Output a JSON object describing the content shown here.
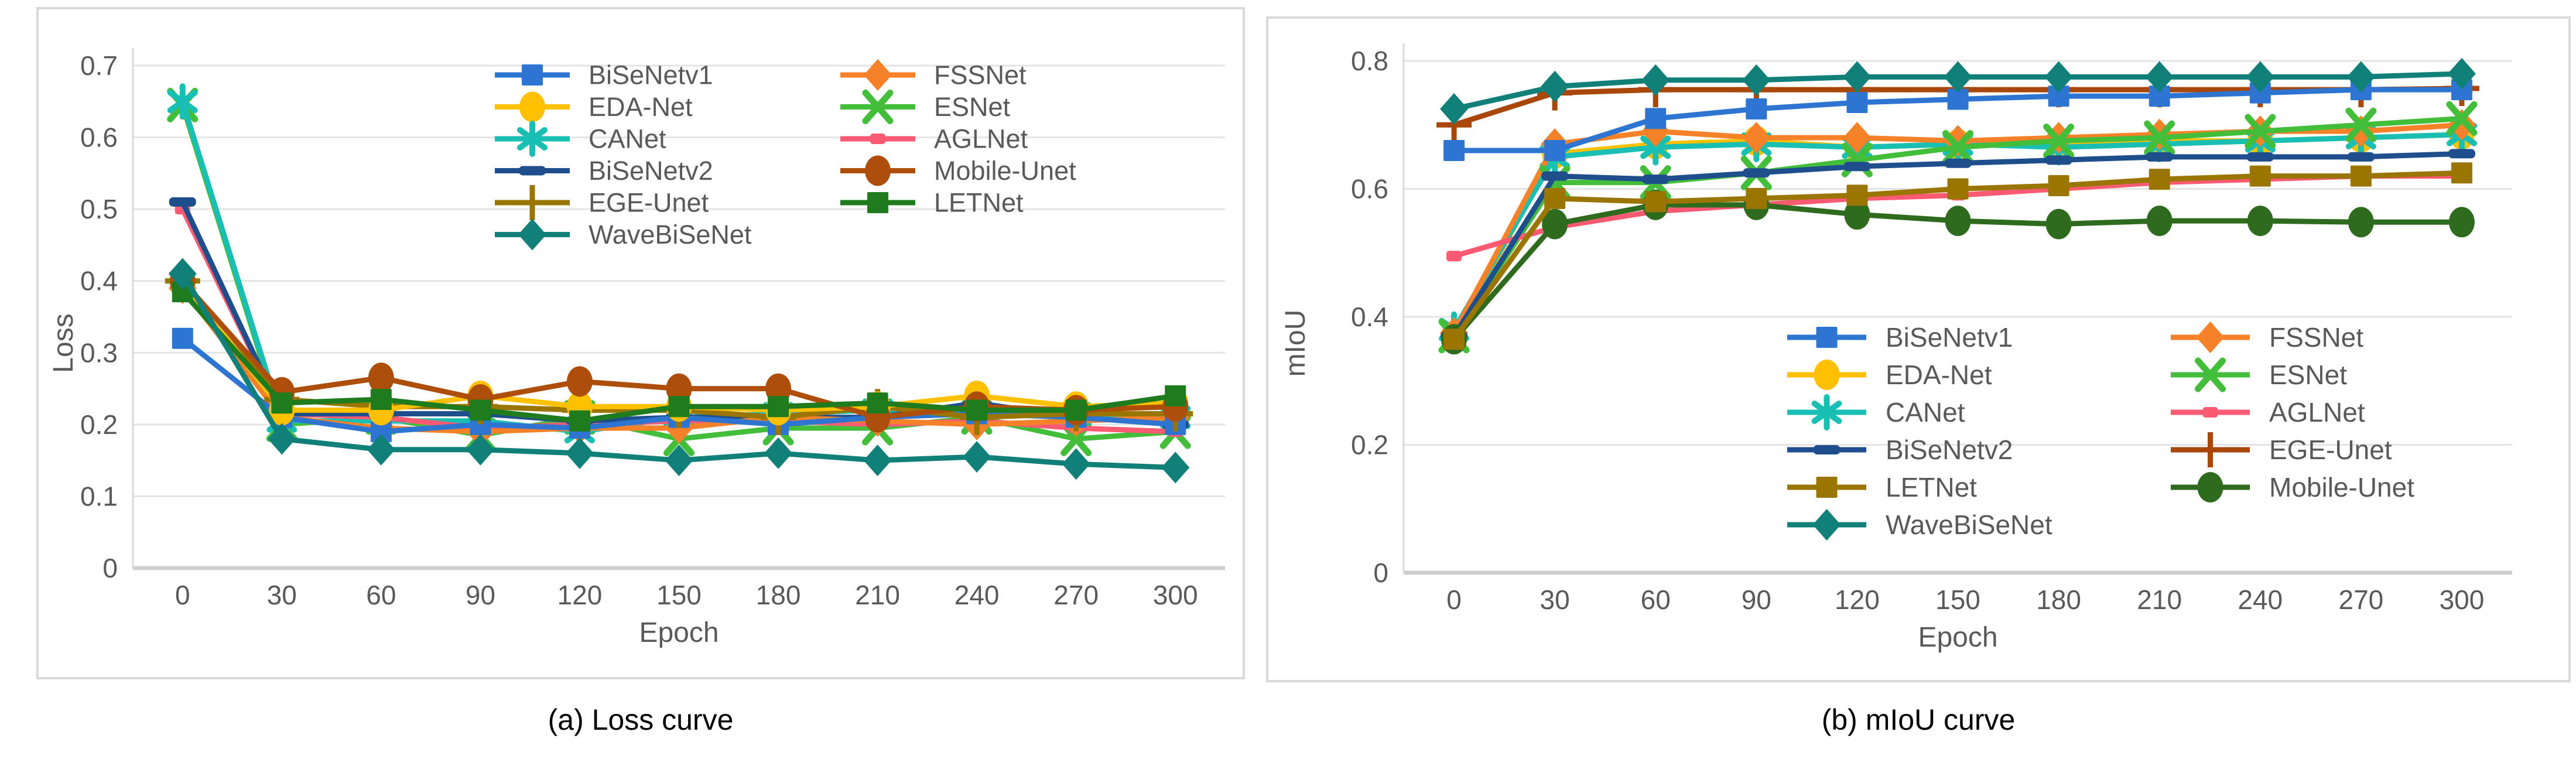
{
  "chart_data": [
    {
      "type": "line",
      "caption": "(a) Loss curve",
      "xlabel": "Epoch",
      "ylabel": "Loss",
      "x": [
        0,
        30,
        60,
        90,
        120,
        150,
        180,
        210,
        240,
        270,
        300
      ],
      "ylim": [
        0,
        0.7
      ],
      "y_ticks": [
        0,
        0.1,
        0.2,
        0.3,
        0.4,
        0.5,
        0.6,
        0.7
      ],
      "y_tick_labels": [
        "0",
        "0.1",
        "0.2",
        "0.3",
        "0.4",
        "0.5",
        "0.6",
        "0.7"
      ],
      "grid": true,
      "legend_position": "top-center",
      "legend_columns": [
        [
          "BiSeNetv1",
          "EDA-Net",
          "CANet",
          "BiSeNetv2",
          "EGE-Unet",
          "WaveBiSeNet"
        ],
        [
          "FSSNet",
          "ESNet",
          "AGLNet",
          "Mobile-Unet",
          "LETNet"
        ]
      ],
      "series": [
        {
          "name": "ESNet",
          "color": "#43BE3B",
          "marker": "x",
          "values": [
            0.645,
            0.2,
            0.21,
            0.185,
            0.21,
            0.18,
            0.195,
            0.195,
            0.21,
            0.18,
            0.19
          ]
        },
        {
          "name": "CANet",
          "color": "#18BFB2",
          "marker": "asterisk",
          "values": [
            0.65,
            0.205,
            0.205,
            0.205,
            0.19,
            0.21,
            0.215,
            0.22,
            0.215,
            0.215,
            0.21
          ]
        },
        {
          "name": "AGLNet",
          "color": "#FA5A72",
          "marker": "square-small",
          "values": [
            0.5,
            0.215,
            0.21,
            0.195,
            0.2,
            0.205,
            0.205,
            0.2,
            0.205,
            0.195,
            0.19
          ]
        },
        {
          "name": "BiSeNetv2",
          "color": "#1F4E8C",
          "marker": "dash",
          "values": [
            0.51,
            0.215,
            0.215,
            0.215,
            0.205,
            0.21,
            0.21,
            0.21,
            0.23,
            0.21,
            0.2
          ]
        },
        {
          "name": "FSSNet",
          "color": "#F58229",
          "marker": "diamond",
          "values": [
            0.39,
            0.21,
            0.195,
            0.19,
            0.195,
            0.195,
            0.21,
            0.205,
            0.2,
            0.205,
            0.21
          ]
        },
        {
          "name": "BiSeNetv1",
          "color": "#2E75D2",
          "marker": "square",
          "values": [
            0.32,
            0.21,
            0.19,
            0.2,
            0.195,
            0.21,
            0.2,
            0.21,
            0.215,
            0.21,
            0.2
          ]
        },
        {
          "name": "EGE-Unet",
          "color": "#9A7500",
          "marker": "plus",
          "values": [
            0.4,
            0.235,
            0.225,
            0.225,
            0.22,
            0.22,
            0.21,
            0.225,
            0.21,
            0.215,
            0.215
          ]
        },
        {
          "name": "EDA-Net",
          "color": "#FFC000",
          "marker": "circle",
          "values": [
            0.4,
            0.22,
            0.22,
            0.24,
            0.225,
            0.225,
            0.22,
            0.225,
            0.24,
            0.225,
            0.23
          ]
        },
        {
          "name": "Mobile-Unet",
          "color": "#AD4E0B",
          "marker": "circle",
          "values": [
            0.4,
            0.245,
            0.265,
            0.235,
            0.26,
            0.25,
            0.25,
            0.21,
            0.225,
            0.22,
            0.225
          ]
        },
        {
          "name": "LETNet",
          "color": "#1E7B1E",
          "marker": "square",
          "values": [
            0.385,
            0.23,
            0.235,
            0.22,
            0.205,
            0.225,
            0.225,
            0.23,
            0.22,
            0.22,
            0.24
          ]
        },
        {
          "name": "WaveBiSeNet",
          "color": "#118078",
          "marker": "diamond",
          "values": [
            0.41,
            0.18,
            0.165,
            0.165,
            0.16,
            0.15,
            0.16,
            0.15,
            0.155,
            0.145,
            0.14
          ]
        }
      ]
    },
    {
      "type": "line",
      "caption": "(b) mIoU curve",
      "xlabel": "Epoch",
      "ylabel": "mIoU",
      "x": [
        0,
        30,
        60,
        90,
        120,
        150,
        180,
        210,
        240,
        270,
        300
      ],
      "ylim": [
        0,
        0.8
      ],
      "y_ticks": [
        0,
        0.2,
        0.4,
        0.6,
        0.8
      ],
      "y_tick_labels": [
        "0",
        "0.2",
        "0.4",
        "0.6",
        "0.8"
      ],
      "grid": true,
      "legend_position": "bottom-right",
      "legend_columns": [
        [
          "BiSeNetv1",
          "EDA-Net",
          "CANet",
          "BiSeNetv2",
          "LETNet",
          "WaveBiSeNet"
        ],
        [
          "FSSNet",
          "ESNet",
          "AGLNet",
          "EGE-Unet",
          "Mobile-Unet"
        ]
      ],
      "series": [
        {
          "name": "EDA-Net",
          "color": "#FFC000",
          "marker": "circle",
          "values": [
            0.37,
            0.655,
            0.67,
            0.675,
            0.665,
            0.67,
            0.67,
            0.675,
            0.675,
            0.68,
            0.685
          ]
        },
        {
          "name": "CANet",
          "color": "#18BFB2",
          "marker": "asterisk",
          "values": [
            0.38,
            0.65,
            0.665,
            0.67,
            0.665,
            0.67,
            0.665,
            0.67,
            0.675,
            0.68,
            0.685
          ]
        },
        {
          "name": "FSSNet",
          "color": "#F58229",
          "marker": "diamond",
          "values": [
            0.375,
            0.67,
            0.69,
            0.68,
            0.68,
            0.675,
            0.68,
            0.685,
            0.69,
            0.69,
            0.7
          ]
        },
        {
          "name": "ESNet",
          "color": "#43BE3B",
          "marker": "x",
          "values": [
            0.37,
            0.61,
            0.61,
            0.625,
            0.645,
            0.665,
            0.675,
            0.68,
            0.69,
            0.7,
            0.71
          ]
        },
        {
          "name": "AGLNet",
          "color": "#FA5A72",
          "marker": "square-small",
          "values": [
            0.495,
            0.54,
            0.565,
            0.575,
            0.585,
            0.59,
            0.6,
            0.61,
            0.615,
            0.62,
            0.62
          ]
        },
        {
          "name": "BiSeNetv2",
          "color": "#1F4E8C",
          "marker": "dash",
          "values": [
            0.37,
            0.62,
            0.615,
            0.625,
            0.635,
            0.64,
            0.645,
            0.65,
            0.65,
            0.65,
            0.655
          ]
        },
        {
          "name": "Mobile-Unet",
          "color": "#2F6B1F",
          "marker": "circle",
          "values": [
            0.365,
            0.545,
            0.575,
            0.575,
            0.56,
            0.55,
            0.545,
            0.55,
            0.55,
            0.548,
            0.548
          ]
        },
        {
          "name": "LETNet",
          "color": "#9A7500",
          "marker": "square",
          "values": [
            0.365,
            0.585,
            0.58,
            0.585,
            0.59,
            0.6,
            0.605,
            0.615,
            0.62,
            0.62,
            0.625
          ]
        },
        {
          "name": "EGE-Unet",
          "color": "#A9470B",
          "marker": "plus",
          "values": [
            0.7,
            0.75,
            0.755,
            0.755,
            0.755,
            0.755,
            0.755,
            0.755,
            0.755,
            0.755,
            0.757
          ]
        },
        {
          "name": "BiSeNetv1",
          "color": "#2E75D2",
          "marker": "square",
          "values": [
            0.66,
            0.66,
            0.71,
            0.725,
            0.735,
            0.74,
            0.745,
            0.745,
            0.75,
            0.755,
            0.755
          ]
        },
        {
          "name": "WaveBiSeNet",
          "color": "#118078",
          "marker": "diamond",
          "values": [
            0.725,
            0.76,
            0.77,
            0.77,
            0.775,
            0.775,
            0.775,
            0.775,
            0.775,
            0.775,
            0.78
          ]
        }
      ]
    }
  ]
}
